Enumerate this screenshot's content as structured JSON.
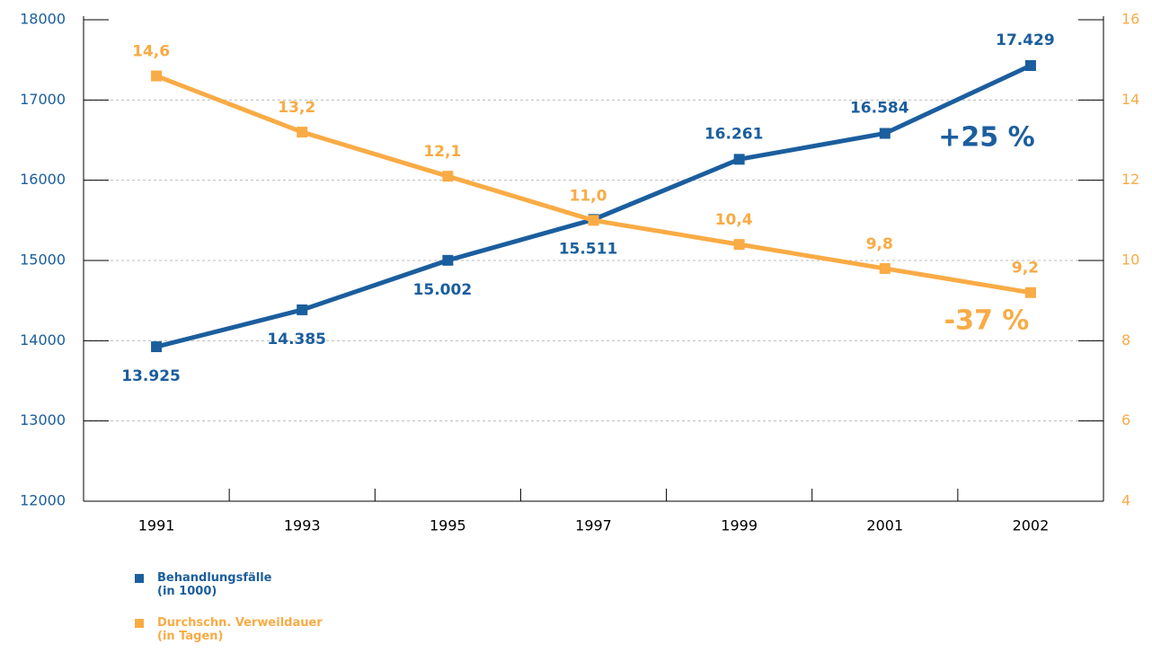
{
  "chart_data": {
    "type": "line",
    "categories": [
      "1991",
      "1993",
      "1995",
      "1997",
      "1999",
      "2001",
      "2002"
    ],
    "series": [
      {
        "name": "Behandlungsfälle\n(in 1000)",
        "color": "#1b5e9e",
        "axis": "y",
        "values": [
          13925,
          14385,
          15002,
          15511,
          16261,
          16584,
          17429
        ],
        "value_labels": [
          "13.925",
          "14.385",
          "15.002",
          "15.511",
          "16.261",
          "16.584",
          "17.429"
        ]
      },
      {
        "name": "Durchschn. Verweildauer\n(in Tagen)",
        "color": "#f9ab45",
        "axis": "y2",
        "values": [
          14.6,
          13.2,
          12.1,
          11.0,
          10.4,
          9.8,
          9.2
        ],
        "value_labels": [
          "14,6",
          "13,2",
          "12,1",
          "11,0",
          "10,4",
          "9,8",
          "9,2"
        ]
      }
    ],
    "ylim": [
      12000,
      18000
    ],
    "yticks": [
      12000,
      13000,
      14000,
      15000,
      16000,
      17000,
      18000
    ],
    "y2lim": [
      4,
      16
    ],
    "y2ticks": [
      4,
      6,
      8,
      10,
      12,
      14,
      16
    ],
    "grid": true,
    "annotations": [
      {
        "text": "+25 %",
        "color": "#1b5e9e"
      },
      {
        "text": "-37 %",
        "color": "#f9ab45"
      }
    ]
  }
}
